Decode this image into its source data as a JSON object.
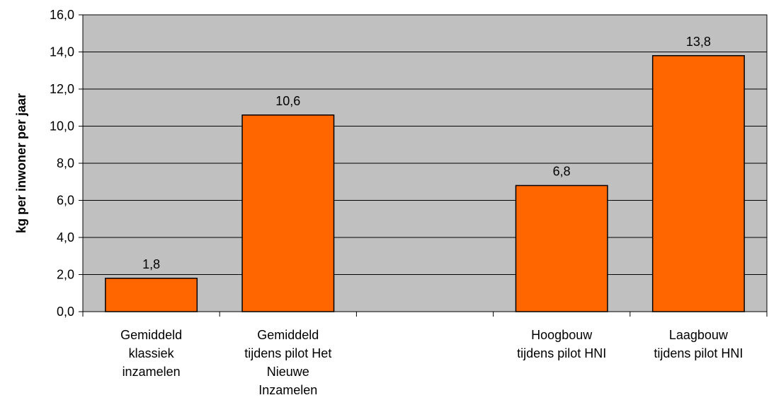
{
  "chart_data": {
    "type": "bar",
    "categories": [
      [
        "Gemiddeld",
        "klassiek",
        "inzamelen"
      ],
      [
        "Gemiddeld",
        "tijdens pilot Het",
        "Nieuwe",
        "Inzamelen"
      ],
      [],
      [
        "Hoogbouw",
        "tijdens pilot HNI"
      ],
      [
        "Laagbouw",
        "tijdens pilot HNI"
      ]
    ],
    "values": [
      1.8,
      10.6,
      null,
      6.8,
      13.8
    ],
    "data_labels": [
      "1,8",
      "10,6",
      "",
      "6,8",
      "13,8"
    ],
    "ylabel": "kg per inwoner per jaar",
    "ylim": [
      0,
      16
    ],
    "yticks": [
      0,
      2,
      4,
      6,
      8,
      10,
      12,
      14,
      16
    ],
    "ytick_labels": [
      "0,0",
      "2,0",
      "4,0",
      "6,0",
      "8,0",
      "10,0",
      "12,0",
      "14,0",
      "16,0"
    ],
    "grid": true,
    "legend": "none",
    "colors": {
      "plot_background": "#c0c0c0",
      "bar_fill": "#ff6600",
      "bar_stroke": "#000000",
      "gridline": "#000000"
    }
  }
}
